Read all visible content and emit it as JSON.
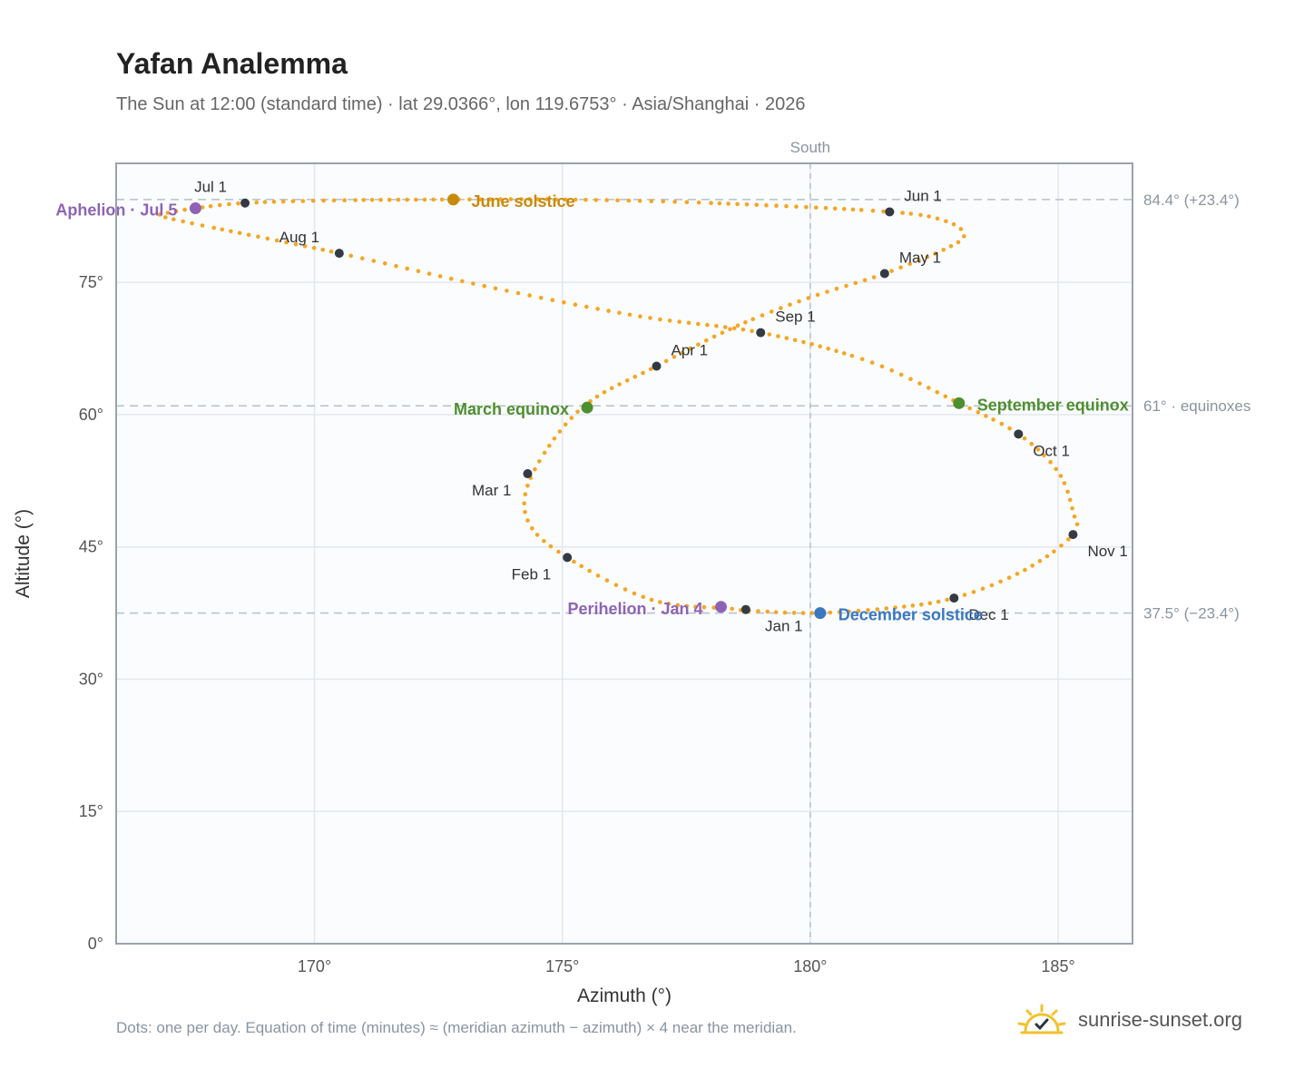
{
  "header": {
    "title": "Yafan Analemma",
    "subtitle": "The Sun at 12:00 (standard time) · lat 29.0366°, lon 119.6753° · Asia/Shanghai · 2026"
  },
  "footer": {
    "note": "Dots: one per day. Equation of time (minutes) ≈ (meridian azimuth − azimuth) × 4 near the meridian.",
    "brand": "sunrise-sunset.org"
  },
  "colors": {
    "curve": "#f5a623",
    "month_dot": "#333a44",
    "june": "#c98a0c",
    "equinox": "#4e8f2e",
    "december": "#3a78c0",
    "apsis": "#8e63b5",
    "grid": "#e3e8ee",
    "plot_bg": "#fafcfe",
    "border": "#9aa3ae",
    "ref_line": "#b6c0ca"
  },
  "icons": {
    "brand": "sun-check-icon"
  },
  "chart_data": {
    "type": "scatter",
    "xlabel": "Azimuth (°)",
    "ylabel": "Altitude (°)",
    "xlim": [
      166,
      186.5
    ],
    "ylim": [
      0,
      88.5
    ],
    "xticks": [
      170,
      175,
      180,
      185
    ],
    "xtick_labels": [
      "170°",
      "175°",
      "180°",
      "185°"
    ],
    "yticks": [
      0,
      15,
      30,
      45,
      60,
      75
    ],
    "ytick_labels": [
      "0°",
      "15°",
      "30°",
      "45°",
      "60°",
      "75°"
    ],
    "grid": true,
    "meridian": {
      "x": 180,
      "label": "South"
    },
    "reference_lines": [
      {
        "y": 84.4,
        "label": "84.4° (+23.4°)"
      },
      {
        "y": 61.0,
        "label": "61° · equinoxes"
      },
      {
        "y": 37.5,
        "label": "37.5° (−23.4°)"
      }
    ],
    "path_keypoints": [
      [
        178.4,
        38.0
      ],
      [
        176.8,
        39.0
      ],
      [
        175.1,
        43.8
      ],
      [
        174.3,
        48.0
      ],
      [
        174.4,
        53.3
      ],
      [
        175.4,
        60.8
      ],
      [
        176.9,
        65.5
      ],
      [
        178.5,
        70.0
      ],
      [
        180.0,
        73.3
      ],
      [
        181.5,
        76.0
      ],
      [
        182.8,
        79.0
      ],
      [
        183.1,
        80.5
      ],
      [
        182.7,
        82.0
      ],
      [
        181.6,
        83.0
      ],
      [
        178.0,
        84.0
      ],
      [
        175.0,
        84.4
      ],
      [
        172.8,
        84.4
      ],
      [
        170.5,
        84.3
      ],
      [
        168.6,
        84.0
      ],
      [
        167.6,
        83.4
      ],
      [
        167.0,
        82.8
      ],
      [
        167.2,
        82.1
      ],
      [
        170.5,
        78.3
      ],
      [
        173.5,
        74.5
      ],
      [
        176.5,
        71.2
      ],
      [
        179.0,
        69.3
      ],
      [
        181.2,
        66.0
      ],
      [
        183.0,
        61.3
      ],
      [
        184.2,
        57.8
      ],
      [
        185.0,
        53.5
      ],
      [
        185.3,
        49.0
      ],
      [
        185.3,
        46.4
      ],
      [
        184.3,
        42.3
      ],
      [
        182.9,
        39.2
      ],
      [
        181.5,
        38.0
      ],
      [
        180.0,
        37.5
      ],
      [
        178.7,
        37.8
      ],
      [
        178.4,
        38.0
      ]
    ],
    "month_points": [
      {
        "label": "Jan 1",
        "x": 178.7,
        "y": 37.9
      },
      {
        "label": "Feb 1",
        "x": 175.1,
        "y": 43.8
      },
      {
        "label": "Mar 1",
        "x": 174.3,
        "y": 53.3
      },
      {
        "label": "Apr 1",
        "x": 176.9,
        "y": 65.5
      },
      {
        "label": "May 1",
        "x": 181.5,
        "y": 76.0
      },
      {
        "label": "Jun 1",
        "x": 181.6,
        "y": 83.0
      },
      {
        "label": "Jul 1",
        "x": 168.6,
        "y": 84.0
      },
      {
        "label": "Aug 1",
        "x": 170.5,
        "y": 78.3
      },
      {
        "label": "Sep 1",
        "x": 179.0,
        "y": 69.3
      },
      {
        "label": "Oct 1",
        "x": 184.2,
        "y": 57.8
      },
      {
        "label": "Nov 1",
        "x": 185.3,
        "y": 46.4
      },
      {
        "label": "Dec 1",
        "x": 182.9,
        "y": 39.2
      }
    ],
    "events": [
      {
        "label": "June solstice",
        "x": 172.8,
        "y": 84.4,
        "color_key": "june"
      },
      {
        "label": "March equinox",
        "x": 175.5,
        "y": 60.8,
        "color_key": "equinox"
      },
      {
        "label": "September equinox",
        "x": 183.0,
        "y": 61.3,
        "color_key": "equinox"
      },
      {
        "label": "December solstice",
        "x": 180.2,
        "y": 37.5,
        "color_key": "december"
      },
      {
        "label": "Aphelion · Jul 5",
        "x": 167.6,
        "y": 83.4,
        "color_key": "apsis"
      },
      {
        "label": "Perihelion · Jan 4",
        "x": 178.2,
        "y": 38.2,
        "color_key": "apsis"
      }
    ]
  }
}
